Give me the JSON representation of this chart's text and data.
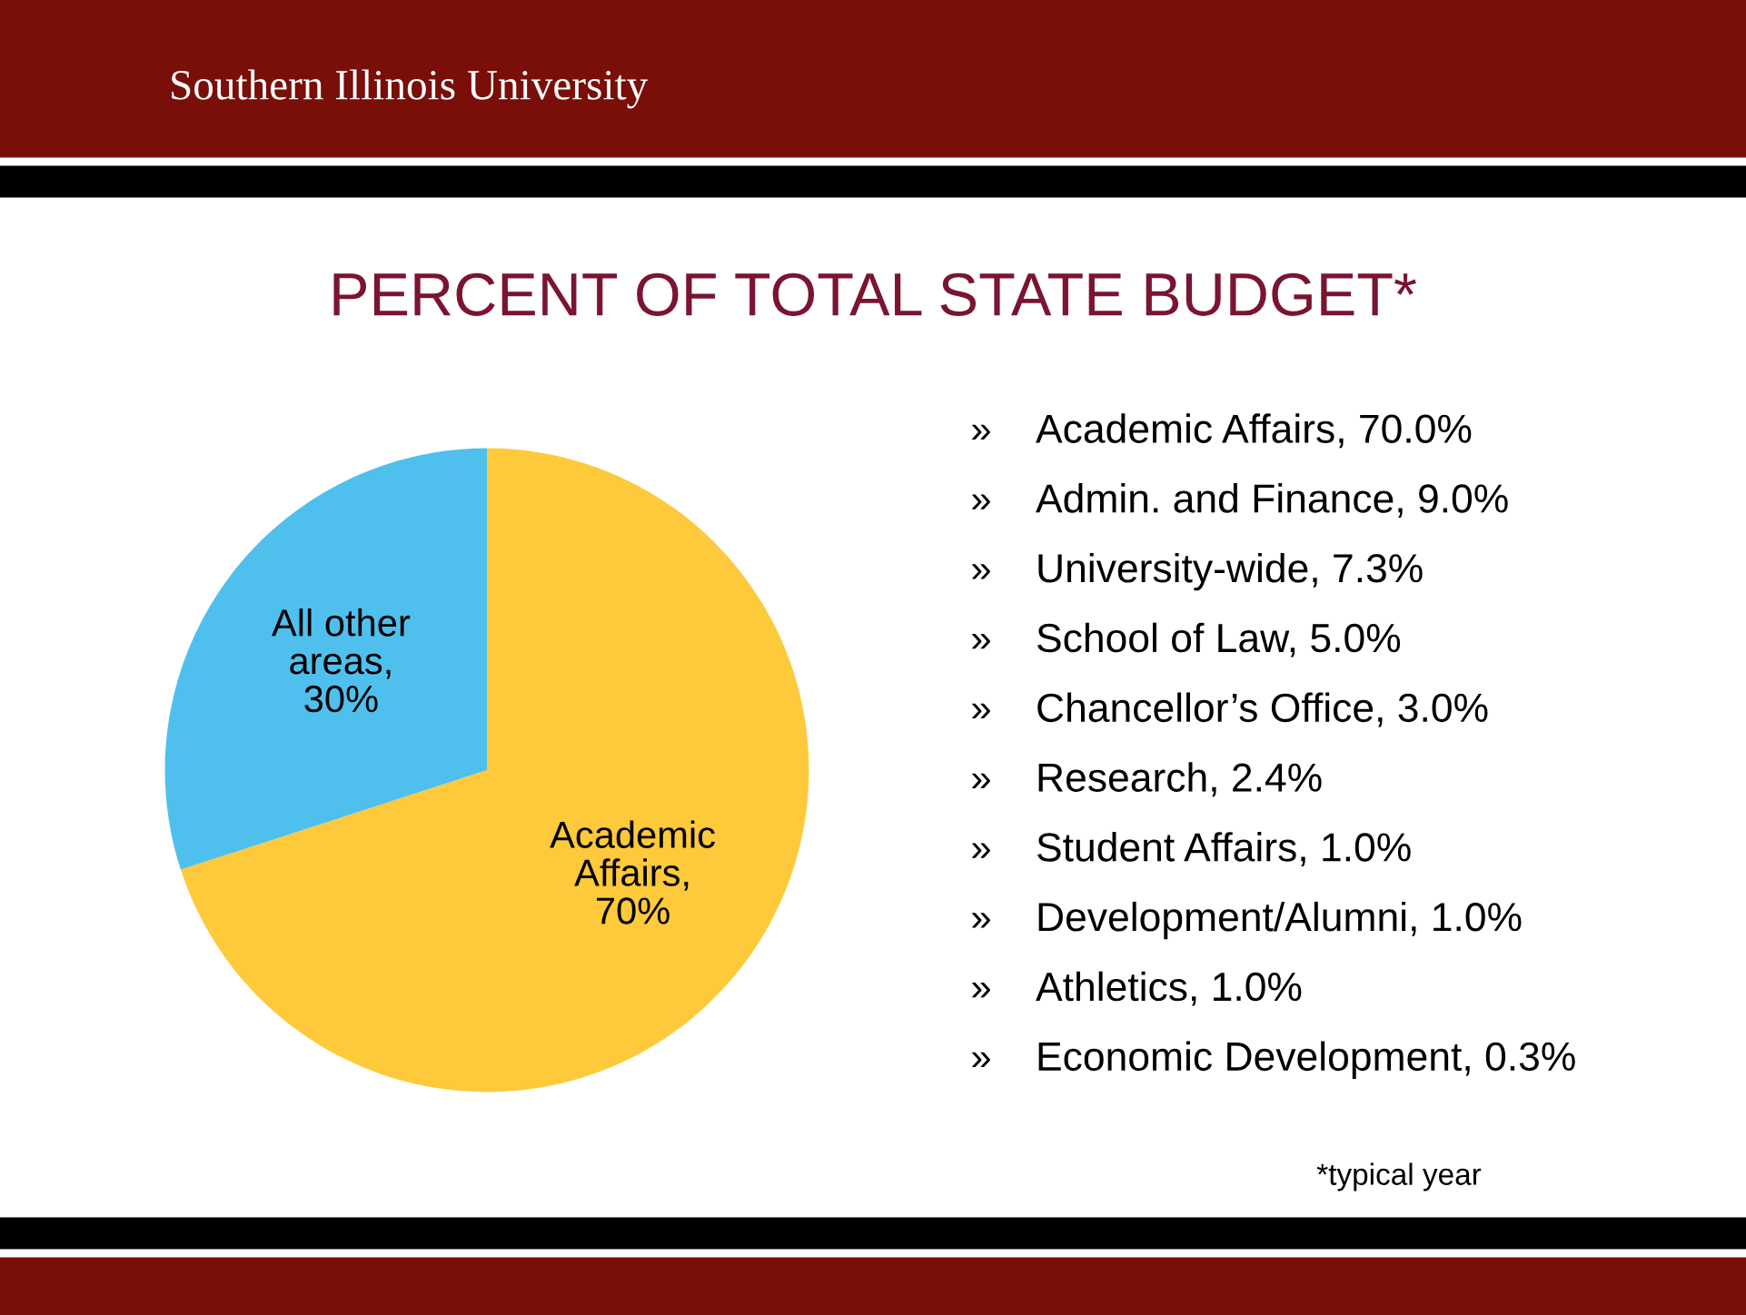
{
  "chart_data": {
    "type": "pie",
    "title": "PERCENT OF TOTAL STATE BUDGET*",
    "categories": [
      "Academic Affairs",
      "All other areas"
    ],
    "values": [
      70,
      30
    ],
    "value_labels": [
      ", 70%",
      ", 30%"
    ],
    "colors": [
      "#fec93a",
      "#4fc0ee"
    ],
    "annotations": [
      "Southern Illinois University",
      "» Academic Affairs, 70.0%",
      "» Admin. and Finance, 9.0%",
      "» University-wide, 7.3%",
      "» School of Law, 5.0%",
      "» Chancellor’s Office, 3.0%",
      "» Research, 2.4%",
      "» Student Affairs, 1.0%",
      "» Development/Alumni, 1.0%",
      "» Athletics, 1.0%",
      "» Economic Development, 0.3%",
      "*typical year"
    ]
  }
}
